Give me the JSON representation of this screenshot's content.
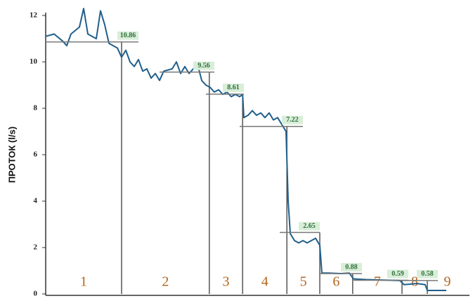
{
  "chart_data": {
    "type": "line",
    "y_label": "ПРОТОК (l/s)",
    "color": "#1f5f8b",
    "ylim": [
      0,
      12
    ],
    "yticks": [
      0,
      2,
      4,
      6,
      8,
      10,
      12
    ],
    "xlim": [
      0,
      100
    ],
    "x": [
      0,
      2,
      4,
      5,
      6,
      8,
      9,
      10,
      11,
      12,
      13,
      14,
      15,
      17,
      18,
      19,
      20,
      21,
      22,
      23,
      24,
      25,
      26,
      27,
      28,
      30,
      31,
      32,
      33,
      34,
      35,
      36,
      37,
      38,
      39,
      40,
      41,
      42,
      43,
      44,
      45,
      46,
      46.7,
      47,
      48,
      49,
      50,
      51,
      52,
      53,
      54,
      55,
      56,
      57,
      57.5,
      58,
      59,
      60,
      61,
      62,
      63,
      64,
      65,
      65.5,
      67,
      70,
      72,
      73,
      76,
      80,
      84,
      85,
      88,
      90,
      90.5,
      95
    ],
    "values": [
      11.1,
      11.2,
      10.9,
      10.7,
      11.2,
      11.5,
      12.3,
      11.2,
      11.1,
      11.0,
      12.2,
      11.6,
      10.8,
      10.6,
      10.2,
      10.5,
      10.0,
      9.8,
      10.1,
      9.6,
      9.7,
      9.3,
      9.5,
      9.2,
      9.6,
      9.7,
      10.0,
      9.5,
      9.8,
      9.5,
      9.7,
      9.9,
      9.2,
      9.0,
      8.9,
      8.7,
      8.8,
      8.6,
      8.7,
      8.5,
      8.6,
      8.5,
      8.6,
      7.6,
      7.7,
      7.9,
      7.7,
      7.8,
      7.6,
      7.8,
      7.5,
      7.6,
      7.3,
      7.0,
      4.0,
      2.6,
      2.3,
      2.2,
      2.3,
      2.2,
      2.3,
      2.4,
      2.1,
      0.9,
      0.9,
      0.88,
      0.9,
      0.65,
      0.62,
      0.6,
      0.58,
      0.4,
      0.45,
      0.4,
      0.15,
      0.15
    ],
    "mean_lines": [
      {
        "value": 10.86,
        "x": [
          0,
          22
        ]
      },
      {
        "value": 9.56,
        "x": [
          27,
          40
        ]
      },
      {
        "value": 8.61,
        "x": [
          38,
          47
        ]
      },
      {
        "value": 7.22,
        "x": [
          46,
          61
        ]
      },
      {
        "value": 2.65,
        "x": [
          55.5,
          65
        ]
      },
      {
        "value": 0.88,
        "x": [
          65,
          75
        ]
      },
      {
        "value": 0.59,
        "x": [
          73,
          86
        ]
      },
      {
        "value": 0.58,
        "x": [
          84,
          93
        ]
      }
    ],
    "boundaries": [
      18,
      38.8,
      46.7,
      57.2,
      65,
      72.8,
      84.5,
      90.5
    ],
    "segments": [
      "1",
      "2",
      "3",
      "4",
      "5",
      "6",
      "7",
      "8",
      "9"
    ],
    "mean_color": "#777777"
  }
}
